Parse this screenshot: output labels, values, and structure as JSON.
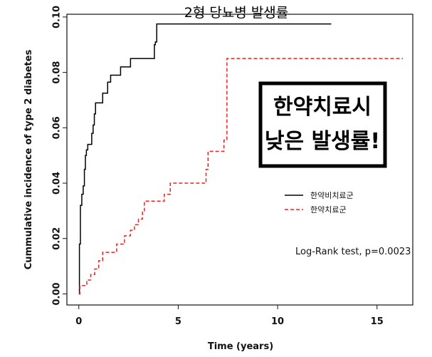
{
  "chart_data": {
    "type": "line",
    "title": "2형 당뇨병 발생률",
    "xlabel": "Time (years)",
    "ylabel": "Cummulative incidence of type 2 diabetes",
    "xlim": [
      -0.6,
      16.8
    ],
    "ylim": [
      -0.004,
      0.101
    ],
    "x_ticks": [
      0,
      5,
      10,
      15
    ],
    "y_ticks": [
      0.0,
      0.02,
      0.04,
      0.06,
      0.08,
      0.1
    ],
    "x_tick_labels": [
      "0",
      "5",
      "10",
      "15"
    ],
    "y_tick_labels": [
      "0.00",
      "0.02",
      "0.04",
      "0.06",
      "0.08",
      "0.10"
    ],
    "grid": false,
    "legend": {
      "placement": "middle-right"
    },
    "annotation": "Log-Rank test, p=0.0023",
    "callout": {
      "lines": [
        "한약치료시",
        "낮은 발생률!"
      ]
    },
    "series": [
      {
        "name": "한약비치료군",
        "color": "#000000",
        "dash": "solid",
        "points": [
          [
            0,
            0
          ],
          [
            0.03,
            0.018
          ],
          [
            0.08,
            0.032
          ],
          [
            0.15,
            0.036
          ],
          [
            0.22,
            0.039
          ],
          [
            0.28,
            0.045
          ],
          [
            0.33,
            0.05
          ],
          [
            0.38,
            0.052
          ],
          [
            0.45,
            0.054
          ],
          [
            0.65,
            0.058
          ],
          [
            0.72,
            0.061
          ],
          [
            0.78,
            0.065
          ],
          [
            0.84,
            0.069
          ],
          [
            1.2,
            0.0725
          ],
          [
            1.45,
            0.0765
          ],
          [
            1.6,
            0.079
          ],
          [
            2.1,
            0.082
          ],
          [
            2.6,
            0.085
          ],
          [
            3.8,
            0.09
          ],
          [
            3.85,
            0.091
          ],
          [
            3.92,
            0.0975
          ],
          [
            12.7,
            0.0975
          ]
        ]
      },
      {
        "name": "한약치료군",
        "color": "#ee2222",
        "dash": "dashed",
        "points": [
          [
            0,
            0
          ],
          [
            0.05,
            0.003
          ],
          [
            0.4,
            0.005
          ],
          [
            0.6,
            0.007
          ],
          [
            0.8,
            0.009
          ],
          [
            1.0,
            0.012
          ],
          [
            1.2,
            0.015
          ],
          [
            1.9,
            0.018
          ],
          [
            2.3,
            0.021
          ],
          [
            2.6,
            0.023
          ],
          [
            2.8,
            0.025
          ],
          [
            3.0,
            0.027
          ],
          [
            3.2,
            0.03
          ],
          [
            3.3,
            0.0335
          ],
          [
            4.3,
            0.036
          ],
          [
            4.6,
            0.04
          ],
          [
            6.4,
            0.045
          ],
          [
            6.5,
            0.0515
          ],
          [
            7.3,
            0.0555
          ],
          [
            7.45,
            0.085
          ],
          [
            16.3,
            0.085
          ]
        ]
      }
    ]
  }
}
